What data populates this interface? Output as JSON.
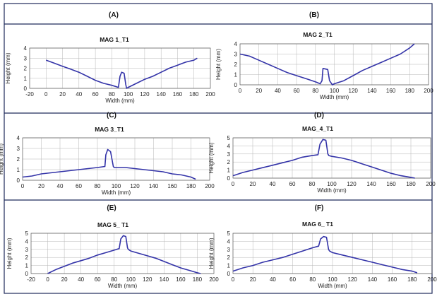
{
  "panel_labels": [
    "(A)",
    "(B)",
    "(C)",
    "(D)",
    "(E)",
    "(F)"
  ],
  "chart_data": [
    {
      "type": "line",
      "panel": "(A)",
      "title": "MAG 1_T1",
      "xlabel": "Width (mm)",
      "ylabel": "Height (mm)",
      "xlim": [
        -20,
        200
      ],
      "ylim": [
        0,
        4
      ],
      "xticks": [
        -20,
        0,
        20,
        40,
        60,
        80,
        100,
        120,
        140,
        160,
        180,
        200
      ],
      "yticks": [
        0,
        1,
        2,
        3,
        4
      ],
      "x": [
        0,
        10,
        20,
        30,
        40,
        50,
        60,
        70,
        80,
        88,
        90,
        92,
        95,
        97,
        98,
        100,
        110,
        120,
        130,
        140,
        150,
        160,
        170,
        180,
        184
      ],
      "y": [
        2.8,
        2.5,
        2.2,
        1.9,
        1.6,
        1.2,
        0.8,
        0.5,
        0.3,
        0.1,
        1.2,
        1.6,
        1.5,
        0.4,
        0.0,
        0.1,
        0.5,
        0.9,
        1.2,
        1.6,
        2.0,
        2.3,
        2.6,
        2.8,
        3.0
      ]
    },
    {
      "type": "line",
      "panel": "(B)",
      "title": "MAG 2_T1",
      "xlabel": "Width (mm)",
      "ylabel": "Height (mm)",
      "xlim": [
        0,
        200
      ],
      "ylim": [
        0,
        4
      ],
      "xticks": [
        0,
        20,
        40,
        60,
        80,
        100,
        120,
        140,
        160,
        180,
        200
      ],
      "yticks": [
        0,
        1,
        2,
        3,
        4
      ],
      "x": [
        0,
        10,
        20,
        30,
        40,
        50,
        60,
        70,
        80,
        85,
        87,
        88,
        93,
        95,
        98,
        100,
        110,
        120,
        130,
        140,
        150,
        160,
        170,
        180,
        185
      ],
      "y": [
        3.0,
        2.8,
        2.4,
        2.0,
        1.6,
        1.2,
        0.9,
        0.6,
        0.3,
        0.1,
        0.4,
        1.6,
        1.5,
        0.4,
        0.0,
        0.1,
        0.4,
        0.9,
        1.4,
        1.8,
        2.2,
        2.6,
        3.0,
        3.6,
        4.0
      ]
    },
    {
      "type": "line",
      "panel": "(C)",
      "title": "MAG 3_T1",
      "xlabel": "Width (mm)",
      "ylabel": "Height (mm)",
      "xlim": [
        0,
        200
      ],
      "ylim": [
        0,
        4
      ],
      "xticks": [
        0,
        20,
        40,
        60,
        80,
        100,
        120,
        140,
        160,
        180,
        200
      ],
      "yticks": [
        0,
        1,
        2,
        3,
        4
      ],
      "x": [
        0,
        10,
        20,
        30,
        40,
        50,
        60,
        70,
        80,
        88,
        89,
        91,
        94,
        97,
        98,
        100,
        110,
        120,
        130,
        140,
        150,
        160,
        170,
        180,
        185
      ],
      "y": [
        0.3,
        0.4,
        0.6,
        0.7,
        0.8,
        0.9,
        1.0,
        1.1,
        1.2,
        1.3,
        2.4,
        2.9,
        2.7,
        1.3,
        1.2,
        1.2,
        1.2,
        1.1,
        1.0,
        0.9,
        0.8,
        0.6,
        0.5,
        0.3,
        0.1
      ]
    },
    {
      "type": "line",
      "panel": "(D)",
      "title": "MAG_4_T1",
      "xlabel": "Width (mm)",
      "ylabel": "Height (mm)",
      "xlim": [
        0,
        200
      ],
      "ylim": [
        0,
        5
      ],
      "xticks": [
        0,
        20,
        40,
        60,
        80,
        100,
        120,
        140,
        160,
        180,
        200
      ],
      "yticks": [
        0,
        1,
        2,
        3,
        4,
        5
      ],
      "x": [
        0,
        10,
        20,
        30,
        40,
        50,
        60,
        70,
        80,
        86,
        88,
        91,
        94,
        96,
        97,
        100,
        110,
        120,
        130,
        140,
        150,
        160,
        170,
        180,
        184
      ],
      "y": [
        0.3,
        0.7,
        1.0,
        1.3,
        1.6,
        1.9,
        2.2,
        2.6,
        2.8,
        2.9,
        4.2,
        4.8,
        4.7,
        3.0,
        2.8,
        2.7,
        2.5,
        2.2,
        1.8,
        1.4,
        1.0,
        0.6,
        0.3,
        0.1,
        0.0
      ]
    },
    {
      "type": "line",
      "panel": "(E)",
      "title": "MAG 5_ T1",
      "xlabel": "Width (mm)",
      "ylabel": "Height (mm)",
      "xlim": [
        -20,
        200
      ],
      "ylim": [
        0,
        5
      ],
      "xticks": [
        -20,
        0,
        20,
        40,
        60,
        80,
        100,
        120,
        140,
        160,
        180,
        200
      ],
      "yticks": [
        0,
        1,
        2,
        3,
        4,
        5
      ],
      "x": [
        0,
        10,
        20,
        30,
        40,
        50,
        60,
        70,
        80,
        86,
        88,
        91,
        94,
        96,
        97,
        100,
        110,
        120,
        130,
        140,
        150,
        160,
        170,
        180,
        184
      ],
      "y": [
        0.0,
        0.5,
        0.9,
        1.3,
        1.6,
        1.9,
        2.3,
        2.6,
        2.9,
        3.1,
        4.3,
        4.7,
        4.6,
        3.2,
        3.0,
        2.8,
        2.5,
        2.2,
        1.9,
        1.5,
        1.1,
        0.7,
        0.4,
        0.1,
        0.0
      ]
    },
    {
      "type": "line",
      "panel": "(F)",
      "title": "MAG 6_ T1",
      "xlabel": "Width (mm)",
      "ylabel": "Height (mm)",
      "xlim": [
        0,
        200
      ],
      "ylim": [
        0,
        5
      ],
      "xticks": [
        0,
        20,
        40,
        60,
        80,
        100,
        120,
        140,
        160,
        180,
        200
      ],
      "yticks": [
        0,
        1,
        2,
        3,
        4,
        5
      ],
      "x": [
        0,
        10,
        20,
        30,
        40,
        50,
        60,
        70,
        80,
        86,
        88,
        91,
        94,
        96,
        97,
        100,
        110,
        120,
        130,
        140,
        150,
        160,
        170,
        180,
        185
      ],
      "y": [
        0.3,
        0.7,
        1.0,
        1.4,
        1.7,
        2.0,
        2.4,
        2.8,
        3.2,
        3.4,
        4.3,
        4.6,
        4.5,
        3.0,
        2.8,
        2.6,
        2.3,
        2.0,
        1.7,
        1.4,
        1.1,
        0.8,
        0.5,
        0.3,
        0.1
      ]
    }
  ],
  "colors": {
    "series": "#3333a8",
    "frame": "#1f2a5a",
    "grid": "#b5b5b5"
  }
}
